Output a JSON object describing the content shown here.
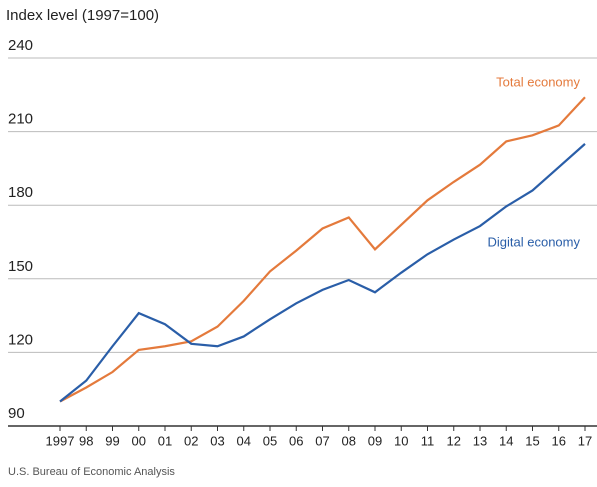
{
  "chart_data": {
    "type": "line",
    "y_label": "Index level (1997=100)",
    "source": "U.S. Bureau of Economic Analysis",
    "categories": [
      "1997",
      "98",
      "99",
      "00",
      "01",
      "02",
      "03",
      "04",
      "05",
      "06",
      "07",
      "08",
      "09",
      "10",
      "11",
      "12",
      "13",
      "14",
      "15",
      "16",
      "17"
    ],
    "series": [
      {
        "name": "Total economy",
        "color": "#e47a3c",
        "values": [
          100,
          105.7,
          112,
          121,
          122.5,
          124.5,
          130.5,
          141,
          153,
          161.5,
          170.5,
          175,
          162,
          172,
          182,
          189.5,
          196.5,
          206,
          208.5,
          212.5,
          224
        ]
      },
      {
        "name": "Digital economy",
        "color": "#2a5ea8",
        "values": [
          100,
          108.5,
          122.5,
          136,
          131.5,
          123.5,
          122.5,
          126.5,
          133.5,
          140,
          145.5,
          149.5,
          144.5,
          152.5,
          160,
          166,
          171.5,
          179.5,
          186,
          195.5,
          205
        ]
      }
    ],
    "ylim": [
      90,
      240
    ],
    "yticks": [
      90,
      120,
      150,
      180,
      210,
      240
    ],
    "grid": true
  }
}
